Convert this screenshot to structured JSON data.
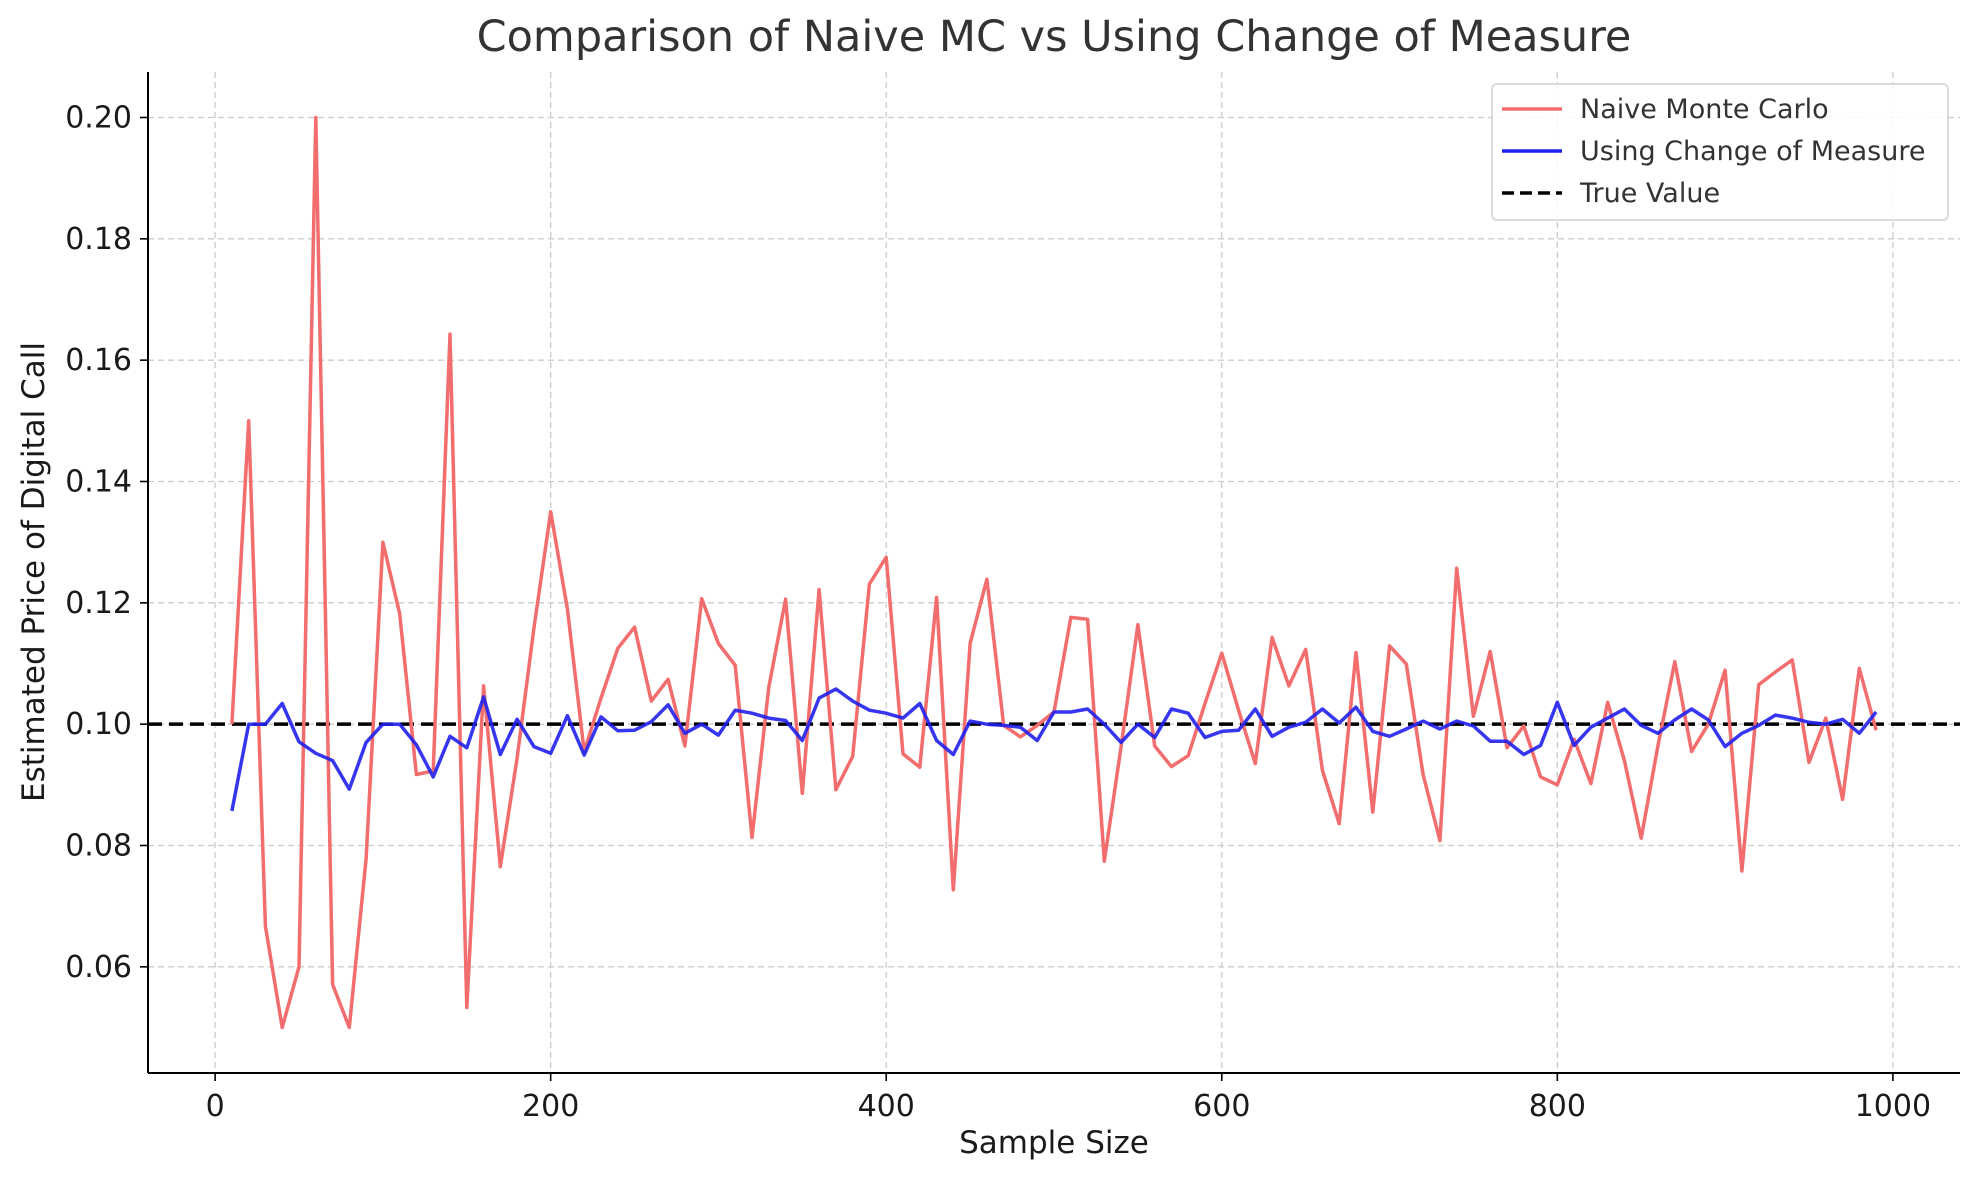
{
  "chart_data": {
    "type": "line",
    "title": "Comparison of Naive MC vs Using Change of Measure",
    "xlabel": "Sample Size",
    "ylabel": "Estimated Price of Digital Call",
    "xlim": [
      -40,
      1040
    ],
    "ylim": [
      0.0425,
      0.2075
    ],
    "xticks": [
      0,
      200,
      400,
      600,
      800,
      1000
    ],
    "yticks": [
      0.06,
      0.08,
      0.1,
      0.12,
      0.14,
      0.16,
      0.18,
      0.2
    ],
    "ytick_labels": [
      "0.06",
      "0.08",
      "0.10",
      "0.12",
      "0.14",
      "0.16",
      "0.18",
      "0.20"
    ],
    "grid": true,
    "legend_position": "top-right",
    "x": [
      10,
      20,
      30,
      40,
      50,
      60,
      70,
      80,
      90,
      100,
      110,
      120,
      130,
      140,
      150,
      160,
      170,
      180,
      190,
      200,
      210,
      220,
      230,
      240,
      250,
      260,
      270,
      280,
      290,
      300,
      310,
      320,
      330,
      340,
      350,
      360,
      370,
      380,
      390,
      400,
      410,
      420,
      430,
      440,
      450,
      460,
      470,
      480,
      490,
      500,
      510,
      520,
      530,
      540,
      550,
      560,
      570,
      580,
      590,
      600,
      610,
      620,
      630,
      640,
      650,
      660,
      670,
      680,
      690,
      700,
      710,
      720,
      730,
      740,
      750,
      760,
      770,
      780,
      790,
      800,
      810,
      820,
      830,
      840,
      850,
      860,
      870,
      880,
      890,
      900,
      910,
      920,
      930,
      940,
      950,
      960,
      970,
      980,
      990
    ],
    "series": [
      {
        "name": "Naive Monte Carlo",
        "color": "#f26d6d",
        "style": "solid",
        "values": [
          0.1,
          0.15,
          0.0667,
          0.05,
          0.06,
          0.2,
          0.0571,
          0.05,
          0.0778,
          0.13,
          0.1182,
          0.0917,
          0.0923,
          0.1643,
          0.0533,
          0.1063,
          0.0765,
          0.0944,
          0.1158,
          0.135,
          0.119,
          0.0955,
          0.1043,
          0.1125,
          0.116,
          0.1038,
          0.1074,
          0.0964,
          0.1207,
          0.1133,
          0.1097,
          0.0813,
          0.1061,
          0.1206,
          0.0886,
          0.1222,
          0.0892,
          0.0947,
          0.1231,
          0.1275,
          0.0951,
          0.0929,
          0.1209,
          0.0727,
          0.1133,
          0.1239,
          0.0998,
          0.0979,
          0.0998,
          0.102,
          0.1176,
          0.1173,
          0.0774,
          0.0963,
          0.1164,
          0.0964,
          0.093,
          0.0948,
          0.1034,
          0.1117,
          0.1023,
          0.0935,
          0.1143,
          0.1063,
          0.1123,
          0.0924,
          0.0836,
          0.1118,
          0.0855,
          0.1129,
          0.1099,
          0.0917,
          0.0808,
          0.1257,
          0.1013,
          0.112,
          0.0961,
          0.0997,
          0.0913,
          0.09,
          0.0975,
          0.0902,
          0.1036,
          0.094,
          0.0812,
          0.0965,
          0.1103,
          0.0955,
          0.1,
          0.1089,
          0.0758,
          0.1065,
          0.1086,
          0.1106,
          0.0937,
          0.101,
          0.0876,
          0.1092,
          0.099
        ]
      },
      {
        "name": "Using Change of Measure",
        "color": "#2020f0",
        "style": "solid",
        "values": [
          0.0857,
          0.1,
          0.1,
          0.1034,
          0.0971,
          0.0952,
          0.094,
          0.0893,
          0.097,
          0.1,
          0.1,
          0.0966,
          0.0913,
          0.098,
          0.0961,
          0.1045,
          0.095,
          0.1008,
          0.0963,
          0.0952,
          0.1014,
          0.0949,
          0.1012,
          0.0989,
          0.099,
          0.1004,
          0.1032,
          0.0985,
          0.1,
          0.0982,
          0.1023,
          0.1018,
          0.101,
          0.1006,
          0.0973,
          0.1043,
          0.1058,
          0.1038,
          0.1023,
          0.1018,
          0.101,
          0.1034,
          0.0973,
          0.095,
          0.1005,
          0.1,
          0.0998,
          0.0995,
          0.0973,
          0.102,
          0.102,
          0.1025,
          0.1,
          0.097,
          0.1,
          0.0978,
          0.1025,
          0.1018,
          0.0978,
          0.0988,
          0.099,
          0.1025,
          0.098,
          0.0995,
          0.1003,
          0.1025,
          0.1002,
          0.1028,
          0.0988,
          0.098,
          0.0992,
          0.1005,
          0.0992,
          0.1005,
          0.0997,
          0.0972,
          0.0972,
          0.095,
          0.0965,
          0.1036,
          0.0965,
          0.0995,
          0.101,
          0.1025,
          0.0998,
          0.0985,
          0.1007,
          0.1025,
          0.1007,
          0.0963,
          0.0985,
          0.0998,
          0.1015,
          0.101,
          0.1003,
          0.1,
          0.1008,
          0.0985,
          0.102
        ]
      },
      {
        "name": "True Value",
        "color": "#000000",
        "style": "dashed",
        "constant": 0.1
      }
    ]
  }
}
